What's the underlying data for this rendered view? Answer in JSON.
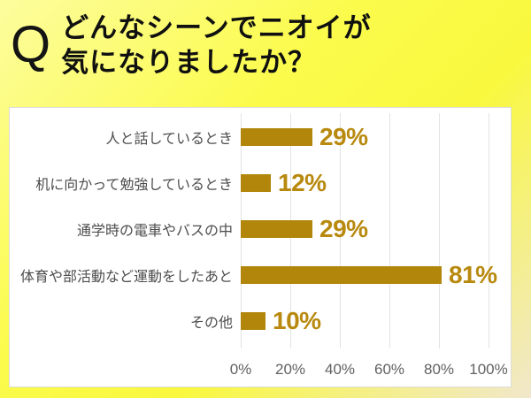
{
  "header": {
    "q_mark": "Q",
    "title_line1": "どんなシーンでニオイが",
    "title_line2": "気になりましたか？"
  },
  "chart_data": {
    "type": "bar",
    "orientation": "horizontal",
    "title": "どんなシーンでニオイが気になりましたか？",
    "categories": [
      "人と話しているとき",
      "机に向かって勉強しているとき",
      "通学時の電車やバスの中",
      "体育や部活動など運動をしたあと",
      "その他"
    ],
    "values": [
      29,
      12,
      29,
      81,
      10
    ],
    "value_labels": [
      "29%",
      "12%",
      "29%",
      "81%",
      "10%"
    ],
    "x_ticks": [
      "0%",
      "20%",
      "40%",
      "60%",
      "80%",
      "100%"
    ],
    "xlim": [
      0,
      100
    ],
    "grid": true,
    "legend_position": "none",
    "colors": {
      "bar": "#b1860b",
      "value_label": "#b8890e",
      "category_label": "#4d4d4d",
      "tick_label": "#616161",
      "gridline": "#e3e3e3",
      "panel_background": "#ffffff",
      "page_background_yellow": "#fbfb4d",
      "title_text": "#101010"
    }
  }
}
